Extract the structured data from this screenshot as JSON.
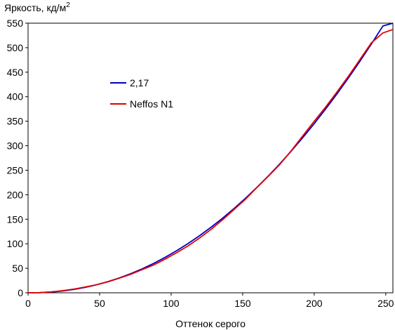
{
  "chart_data": {
    "type": "line",
    "ylabel": "Яркость, кд/м",
    "ylabel_sup": "2",
    "xlabel": "Оттенок серого",
    "xlim": [
      0,
      255
    ],
    "ylim": [
      0,
      550
    ],
    "x_ticks": [
      0,
      50,
      100,
      150,
      200,
      250
    ],
    "y_ticks": [
      0,
      50,
      100,
      150,
      200,
      250,
      300,
      350,
      400,
      450,
      500,
      550
    ],
    "grid": false,
    "legend_position": "upper-left inside plot",
    "series": [
      {
        "name": "2,17",
        "color": "#0000c0",
        "x": [
          0,
          8,
          16,
          24,
          32,
          40,
          48,
          56,
          64,
          72,
          80,
          88,
          96,
          104,
          112,
          120,
          128,
          136,
          144,
          152,
          160,
          168,
          176,
          184,
          192,
          200,
          208,
          216,
          224,
          232,
          240,
          248,
          255
        ],
        "y": [
          0,
          0.3,
          1.5,
          3.6,
          6.8,
          11.1,
          16.4,
          22.9,
          30.5,
          39.3,
          49.2,
          60.3,
          72.6,
          86.1,
          100.8,
          116.7,
          133.9,
          152.3,
          172.0,
          192.9,
          215.1,
          238.5,
          263.2,
          289.2,
          316.5,
          345.1,
          375.0,
          406.2,
          438.7,
          472.5,
          507.7,
          544.2,
          550
        ]
      },
      {
        "name": "Neffos N1",
        "color": "#e00000",
        "x": [
          0,
          8,
          16,
          24,
          32,
          40,
          48,
          56,
          64,
          72,
          80,
          88,
          96,
          104,
          112,
          120,
          128,
          136,
          144,
          152,
          160,
          168,
          176,
          184,
          192,
          200,
          208,
          216,
          224,
          232,
          240,
          248,
          255
        ],
        "y": [
          0,
          0.3,
          1.8,
          4.2,
          7.5,
          11.8,
          16.5,
          22.5,
          30.0,
          38.0,
          47.5,
          57.0,
          69.0,
          82.0,
          96.0,
          112.0,
          129.5,
          149.0,
          170.0,
          191.0,
          215.0,
          238.0,
          262.0,
          290.0,
          320.0,
          350.0,
          379.0,
          410.0,
          442.0,
          476.0,
          510.0,
          530.0,
          537.0
        ]
      }
    ]
  }
}
